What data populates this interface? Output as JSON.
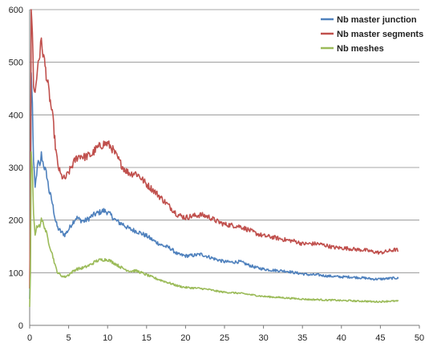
{
  "chart_data": {
    "type": "line",
    "title": "",
    "xlabel": "",
    "ylabel": "",
    "xlim": [
      0,
      50
    ],
    "ylim": [
      0,
      600
    ],
    "x_ticks": [
      0,
      5,
      10,
      15,
      20,
      25,
      30,
      35,
      40,
      45,
      50
    ],
    "y_ticks": [
      0,
      100,
      200,
      300,
      400,
      500,
      600
    ],
    "grid": "horizontal",
    "legend_position": "top-right",
    "series": [
      {
        "name": "Nb master junction",
        "color": "#4f81bd",
        "points": [
          [
            0.0,
            50
          ],
          [
            0.1,
            150
          ],
          [
            0.2,
            480
          ],
          [
            0.35,
            420
          ],
          [
            0.5,
            310
          ],
          [
            0.7,
            260
          ],
          [
            0.9,
            290
          ],
          [
            1.1,
            310
          ],
          [
            1.3,
            300
          ],
          [
            1.5,
            325
          ],
          [
            1.7,
            310
          ],
          [
            1.9,
            300
          ],
          [
            2.2,
            285
          ],
          [
            2.5,
            255
          ],
          [
            2.8,
            240
          ],
          [
            3.0,
            225
          ],
          [
            3.3,
            200
          ],
          [
            3.6,
            185
          ],
          [
            4.0,
            178
          ],
          [
            4.5,
            172
          ],
          [
            5.0,
            182
          ],
          [
            5.5,
            195
          ],
          [
            6.0,
            205
          ],
          [
            6.5,
            200
          ],
          [
            7.0,
            198
          ],
          [
            7.5,
            202
          ],
          [
            8.0,
            208
          ],
          [
            8.5,
            212
          ],
          [
            9.0,
            215
          ],
          [
            9.5,
            218
          ],
          [
            10.0,
            215
          ],
          [
            10.5,
            208
          ],
          [
            11.0,
            200
          ],
          [
            11.5,
            195
          ],
          [
            12.0,
            192
          ],
          [
            12.5,
            186
          ],
          [
            13.0,
            182
          ],
          [
            13.5,
            180
          ],
          [
            14.0,
            177
          ],
          [
            15.0,
            170
          ],
          [
            16.0,
            160
          ],
          [
            17.0,
            152
          ],
          [
            18.0,
            147
          ],
          [
            19.0,
            135
          ],
          [
            20.0,
            132
          ],
          [
            21.0,
            133
          ],
          [
            22.0,
            135
          ],
          [
            23.0,
            130
          ],
          [
            24.0,
            125
          ],
          [
            25.0,
            121
          ],
          [
            26.0,
            120
          ],
          [
            27.0,
            121
          ],
          [
            28.0,
            115
          ],
          [
            29.0,
            110
          ],
          [
            30.0,
            107
          ],
          [
            31.0,
            105
          ],
          [
            32.0,
            104
          ],
          [
            33.0,
            103
          ],
          [
            34.0,
            100
          ],
          [
            35.0,
            98
          ],
          [
            36.0,
            96
          ],
          [
            37.0,
            96
          ],
          [
            38.0,
            94
          ],
          [
            39.0,
            93
          ],
          [
            40.0,
            92
          ],
          [
            41.0,
            92
          ],
          [
            42.0,
            91
          ],
          [
            43.0,
            90
          ],
          [
            44.0,
            88
          ],
          [
            45.0,
            88
          ],
          [
            46.0,
            89
          ],
          [
            47.0,
            90
          ],
          [
            47.3,
            89
          ]
        ]
      },
      {
        "name": "Nb master segments",
        "color": "#c0504d",
        "points": [
          [
            0.0,
            70
          ],
          [
            0.1,
            250
          ],
          [
            0.2,
            600
          ],
          [
            0.35,
            560
          ],
          [
            0.5,
            460
          ],
          [
            0.7,
            440
          ],
          [
            0.9,
            470
          ],
          [
            1.1,
            505
          ],
          [
            1.3,
            515
          ],
          [
            1.5,
            540
          ],
          [
            1.7,
            520
          ],
          [
            1.9,
            500
          ],
          [
            2.2,
            470
          ],
          [
            2.5,
            440
          ],
          [
            2.8,
            410
          ],
          [
            3.0,
            390
          ],
          [
            3.3,
            340
          ],
          [
            3.6,
            305
          ],
          [
            4.0,
            285
          ],
          [
            4.5,
            278
          ],
          [
            5.0,
            290
          ],
          [
            5.5,
            305
          ],
          [
            6.0,
            318
          ],
          [
            6.5,
            323
          ],
          [
            7.0,
            320
          ],
          [
            7.5,
            322
          ],
          [
            8.0,
            325
          ],
          [
            8.5,
            335
          ],
          [
            9.0,
            340
          ],
          [
            9.5,
            345
          ],
          [
            10.0,
            345
          ],
          [
            10.5,
            338
          ],
          [
            11.0,
            325
          ],
          [
            11.5,
            312
          ],
          [
            12.0,
            300
          ],
          [
            12.5,
            292
          ],
          [
            13.0,
            288
          ],
          [
            13.5,
            290
          ],
          [
            14.0,
            285
          ],
          [
            15.0,
            268
          ],
          [
            16.0,
            255
          ],
          [
            17.0,
            240
          ],
          [
            18.0,
            225
          ],
          [
            19.0,
            210
          ],
          [
            20.0,
            205
          ],
          [
            21.0,
            208
          ],
          [
            22.0,
            210
          ],
          [
            23.0,
            206
          ],
          [
            24.0,
            198
          ],
          [
            25.0,
            192
          ],
          [
            26.0,
            190
          ],
          [
            27.0,
            188
          ],
          [
            28.0,
            182
          ],
          [
            29.0,
            175
          ],
          [
            30.0,
            170
          ],
          [
            31.0,
            168
          ],
          [
            32.0,
            165
          ],
          [
            33.0,
            162
          ],
          [
            34.0,
            160
          ],
          [
            35.0,
            155
          ],
          [
            36.0,
            155
          ],
          [
            37.0,
            155
          ],
          [
            38.0,
            152
          ],
          [
            39.0,
            148
          ],
          [
            40.0,
            147
          ],
          [
            41.0,
            146
          ],
          [
            42.0,
            144
          ],
          [
            43.0,
            143
          ],
          [
            44.0,
            140
          ],
          [
            45.0,
            138
          ],
          [
            46.0,
            141
          ],
          [
            47.0,
            144
          ],
          [
            47.3,
            142
          ]
        ]
      },
      {
        "name": "Nb meshes",
        "color": "#9bbb59",
        "points": [
          [
            0.0,
            35
          ],
          [
            0.1,
            100
          ],
          [
            0.2,
            330
          ],
          [
            0.35,
            290
          ],
          [
            0.5,
            210
          ],
          [
            0.7,
            175
          ],
          [
            0.9,
            185
          ],
          [
            1.1,
            192
          ],
          [
            1.3,
            190
          ],
          [
            1.5,
            200
          ],
          [
            1.7,
            195
          ],
          [
            1.9,
            188
          ],
          [
            2.2,
            172
          ],
          [
            2.5,
            155
          ],
          [
            2.8,
            140
          ],
          [
            3.0,
            130
          ],
          [
            3.3,
            112
          ],
          [
            3.6,
            100
          ],
          [
            4.0,
            95
          ],
          [
            4.5,
            92
          ],
          [
            5.0,
            96
          ],
          [
            5.5,
            102
          ],
          [
            6.0,
            107
          ],
          [
            6.5,
            108
          ],
          [
            7.0,
            110
          ],
          [
            7.5,
            113
          ],
          [
            8.0,
            117
          ],
          [
            8.5,
            122
          ],
          [
            9.0,
            124
          ],
          [
            9.5,
            125
          ],
          [
            10.0,
            125
          ],
          [
            10.5,
            121
          ],
          [
            11.0,
            117
          ],
          [
            11.5,
            112
          ],
          [
            12.0,
            108
          ],
          [
            12.5,
            105
          ],
          [
            13.0,
            103
          ],
          [
            13.5,
            104
          ],
          [
            14.0,
            102
          ],
          [
            15.0,
            96
          ],
          [
            16.0,
            90
          ],
          [
            17.0,
            85
          ],
          [
            18.0,
            80
          ],
          [
            19.0,
            75
          ],
          [
            20.0,
            72
          ],
          [
            21.0,
            71
          ],
          [
            22.0,
            70
          ],
          [
            23.0,
            68
          ],
          [
            24.0,
            65
          ],
          [
            25.0,
            63
          ],
          [
            26.0,
            62
          ],
          [
            27.0,
            61
          ],
          [
            28.0,
            59
          ],
          [
            29.0,
            57
          ],
          [
            30.0,
            55
          ],
          [
            31.0,
            54
          ],
          [
            32.0,
            53
          ],
          [
            33.0,
            52
          ],
          [
            34.0,
            51
          ],
          [
            35.0,
            50
          ],
          [
            36.0,
            49
          ],
          [
            37.0,
            49
          ],
          [
            38.0,
            48
          ],
          [
            39.0,
            48
          ],
          [
            40.0,
            47
          ],
          [
            41.0,
            47
          ],
          [
            42.0,
            46
          ],
          [
            43.0,
            46
          ],
          [
            44.0,
            45
          ],
          [
            45.0,
            45
          ],
          [
            46.0,
            46
          ],
          [
            47.0,
            46
          ],
          [
            47.3,
            46
          ]
        ]
      }
    ]
  }
}
